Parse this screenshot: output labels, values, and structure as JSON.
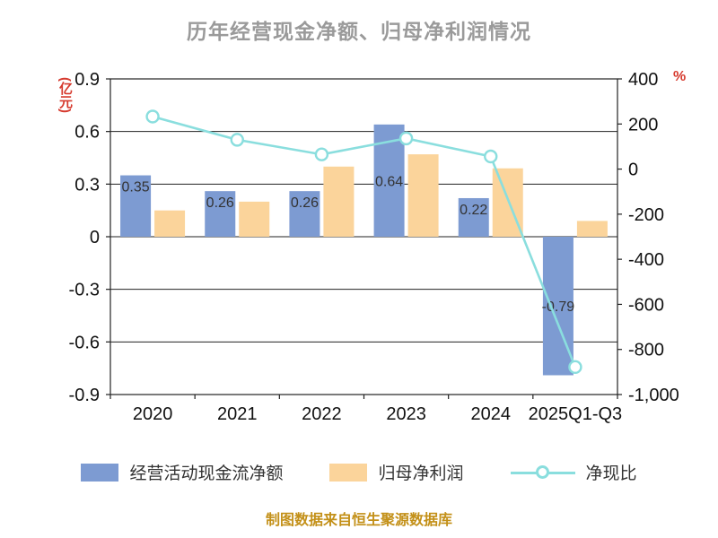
{
  "chart_data": {
    "type": "bar+line",
    "title": "历年经营现金净额、归母净利润情况",
    "footer": "制图数据来自恒生聚源数据库",
    "categories": [
      "2020",
      "2021",
      "2022",
      "2023",
      "2024",
      "2025Q1-Q3"
    ],
    "series": [
      {
        "name": "经营活动现金流净额",
        "type": "bar",
        "axis": "left",
        "color": "#7D9BD2",
        "values": [
          0.35,
          0.26,
          0.26,
          0.64,
          0.22,
          -0.79
        ],
        "labels": [
          "0.35",
          "0.26",
          "0.26",
          "0.64",
          "0.22",
          "-0.79"
        ]
      },
      {
        "name": "归母净利润",
        "type": "bar",
        "axis": "left",
        "color": "#FBD49B",
        "values": [
          0.15,
          0.2,
          0.4,
          0.47,
          0.39,
          0.09
        ]
      },
      {
        "name": "净现比",
        "type": "line",
        "axis": "right",
        "color": "#8ADEDE",
        "values": [
          233,
          130,
          65,
          136,
          56,
          -878
        ]
      }
    ],
    "left_axis": {
      "unit": "(亿元)",
      "min": -0.9,
      "max": 0.9,
      "tick_values": [
        0.9,
        0.6,
        0.3,
        0,
        -0.3,
        -0.6,
        -0.9
      ],
      "tick_labels": [
        "0.9",
        "0.6",
        "0.3",
        "0",
        "-0.3",
        "-0.6",
        "-0.9"
      ]
    },
    "right_axis": {
      "unit": "%",
      "min": -1000,
      "max": 400,
      "tick_values": [
        400,
        200,
        0,
        -200,
        -400,
        -600,
        -800,
        -1000
      ],
      "tick_labels": [
        "400",
        "200",
        "0",
        "-200",
        "-400",
        "-600",
        "-800",
        "-1,000"
      ]
    },
    "grid": true,
    "legend_position": "bottom",
    "colors": {
      "title": "#9A9A9A",
      "axis_unit": "#D63A2E",
      "tick_text": "#111111",
      "bar_label": "#333333",
      "grid_line": "#222222",
      "footer": "#C39018"
    }
  }
}
